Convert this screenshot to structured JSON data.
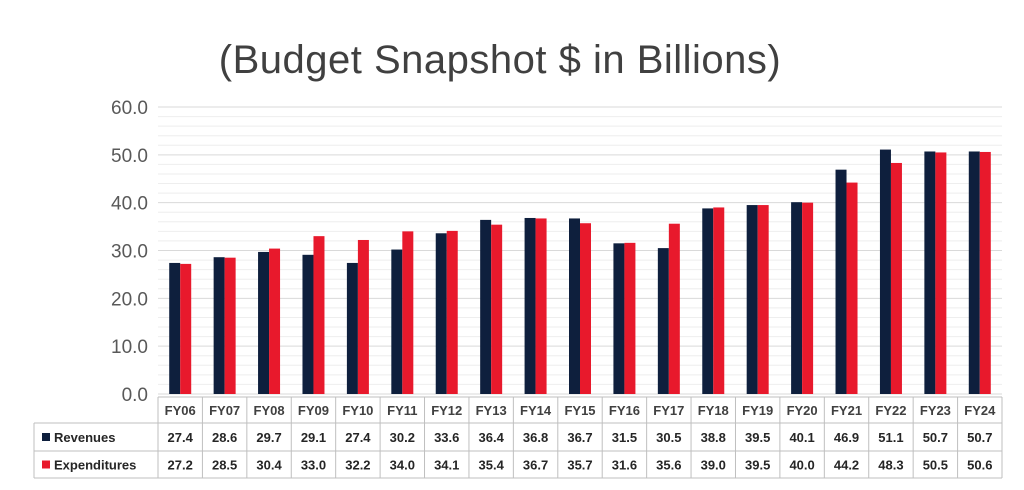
{
  "chart_data": {
    "type": "bar",
    "title": "(Budget Snapshot $ in Billions)",
    "categories": [
      "FY06",
      "FY07",
      "FY08",
      "FY09",
      "FY10",
      "FY11",
      "FY12",
      "FY13",
      "FY14",
      "FY15",
      "FY16",
      "FY17",
      "FY18",
      "FY19",
      "FY20",
      "FY21",
      "FY22",
      "FY23",
      "FY24"
    ],
    "series": [
      {
        "name": "Revenues",
        "color": "#0e1f3d",
        "values": [
          27.4,
          28.6,
          29.7,
          29.1,
          27.4,
          30.2,
          33.6,
          36.4,
          36.8,
          36.7,
          31.5,
          30.5,
          38.8,
          39.5,
          40.1,
          46.9,
          51.1,
          50.7,
          50.7
        ],
        "labels": [
          "27.4",
          "28.6",
          "29.7",
          "29.1",
          "27.4",
          "30.2",
          "33.6",
          "36.4",
          "36.8",
          "36.7",
          "31.5",
          "30.5",
          "38.8",
          "39.5",
          "40.1",
          "46.9",
          "51.1",
          "50.7",
          "50.7"
        ]
      },
      {
        "name": "Expenditures",
        "color": "#e8192c",
        "values": [
          27.2,
          28.5,
          30.4,
          33.0,
          32.2,
          34.0,
          34.1,
          35.4,
          36.7,
          35.7,
          31.6,
          35.6,
          39.0,
          39.5,
          40.0,
          44.2,
          48.3,
          50.5,
          50.6
        ],
        "labels": [
          "27.2",
          "28.5",
          "30.4",
          "33.0",
          "32.2",
          "34.0",
          "34.1",
          "35.4",
          "36.7",
          "35.7",
          "31.6",
          "35.6",
          "39.0",
          "39.5",
          "40.0",
          "44.2",
          "48.3",
          "50.5",
          "50.6"
        ]
      }
    ],
    "ylim": [
      0,
      60
    ],
    "yticks": [
      "0.0",
      "10.0",
      "20.0",
      "30.0",
      "40.0",
      "50.0",
      "60.0"
    ],
    "grid": true,
    "legend": "data-table"
  }
}
